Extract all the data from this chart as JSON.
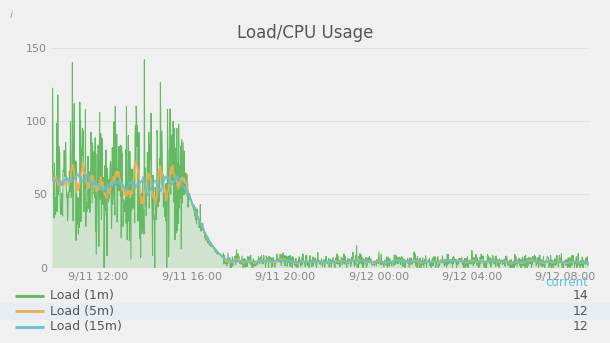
{
  "title": "Load/CPU Usage",
  "background_color": "#f0f0f0",
  "plot_bg_color": "#f0f0f0",
  "ylim": [
    0,
    150
  ],
  "yticks": [
    0,
    50,
    100,
    150
  ],
  "xlabel_ticks": [
    "9/11 12:00",
    "9/11 16:00",
    "9/11 20:00",
    "9/12 00:00",
    "9/12 04:00",
    "9/12 08:00"
  ],
  "color_1m": "#5cb85c",
  "color_5m": "#f0ad4e",
  "color_15m": "#5bc0de",
  "legend_labels": [
    "Load (1m)",
    "Load (5m)",
    "Load (15m)"
  ],
  "legend_current": "current",
  "legend_values": [
    "14",
    "12",
    "12"
  ],
  "title_fontsize": 12,
  "legend_fontsize": 9,
  "current_color": "#5bc0de",
  "grid_color": "#e0e0e0",
  "tick_color": "#888888",
  "title_color": "#555555"
}
